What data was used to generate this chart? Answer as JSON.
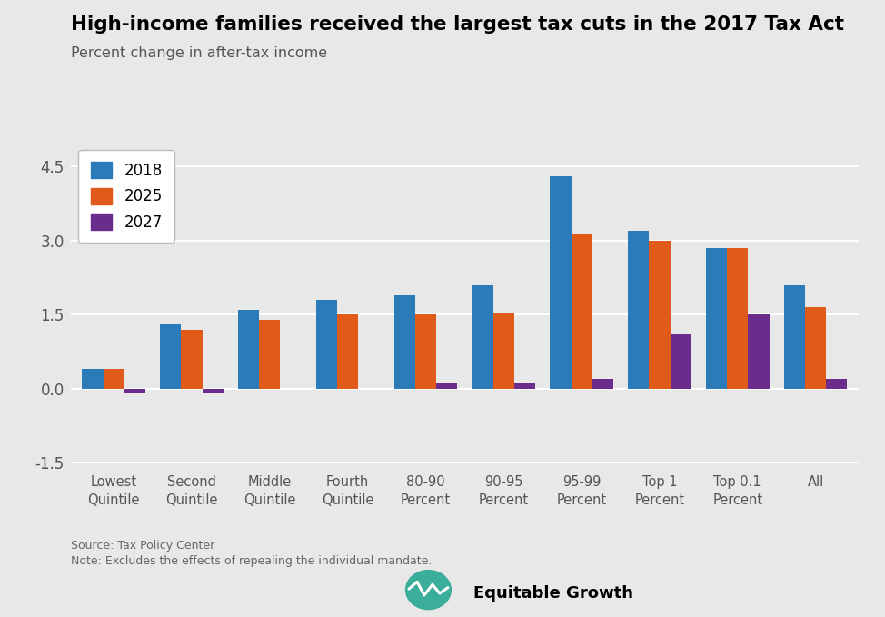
{
  "title": "High-income families received the largest tax cuts in the 2017 Tax Act",
  "subtitle": "Percent change in after-tax income",
  "categories": [
    "Lowest\nQuintile",
    "Second\nQuintile",
    "Middle\nQuintile",
    "Fourth\nQuintile",
    "80-90\nPercent",
    "90-95\nPercent",
    "95-99\nPercent",
    "Top 1\nPercent",
    "Top 0.1\nPercent",
    "All"
  ],
  "series": {
    "2018": [
      0.4,
      1.3,
      1.6,
      1.8,
      1.9,
      2.1,
      4.3,
      3.2,
      2.85,
      2.1
    ],
    "2025": [
      0.4,
      1.2,
      1.4,
      1.5,
      1.5,
      1.55,
      3.15,
      3.0,
      2.85,
      1.65
    ],
    "2027": [
      -0.1,
      -0.1,
      0.0,
      0.0,
      0.1,
      0.1,
      0.2,
      1.1,
      1.5,
      0.2
    ]
  },
  "colors": {
    "2018": "#2B7BB9",
    "2025": "#E05A1A",
    "2027": "#6B2D8B"
  },
  "ylim": [
    -1.5,
    5.0
  ],
  "yticks": [
    -1.5,
    0.0,
    1.5,
    3.0,
    4.5
  ],
  "background_color": "#E8E8E8",
  "grid_color": "#FFFFFF",
  "source_text": "Source: Tax Policy Center",
  "note_text": "Note: Excludes the effects of repealing the individual mandate.",
  "logo_text": "Equitable Growth",
  "logo_color": "#3BAD9B"
}
